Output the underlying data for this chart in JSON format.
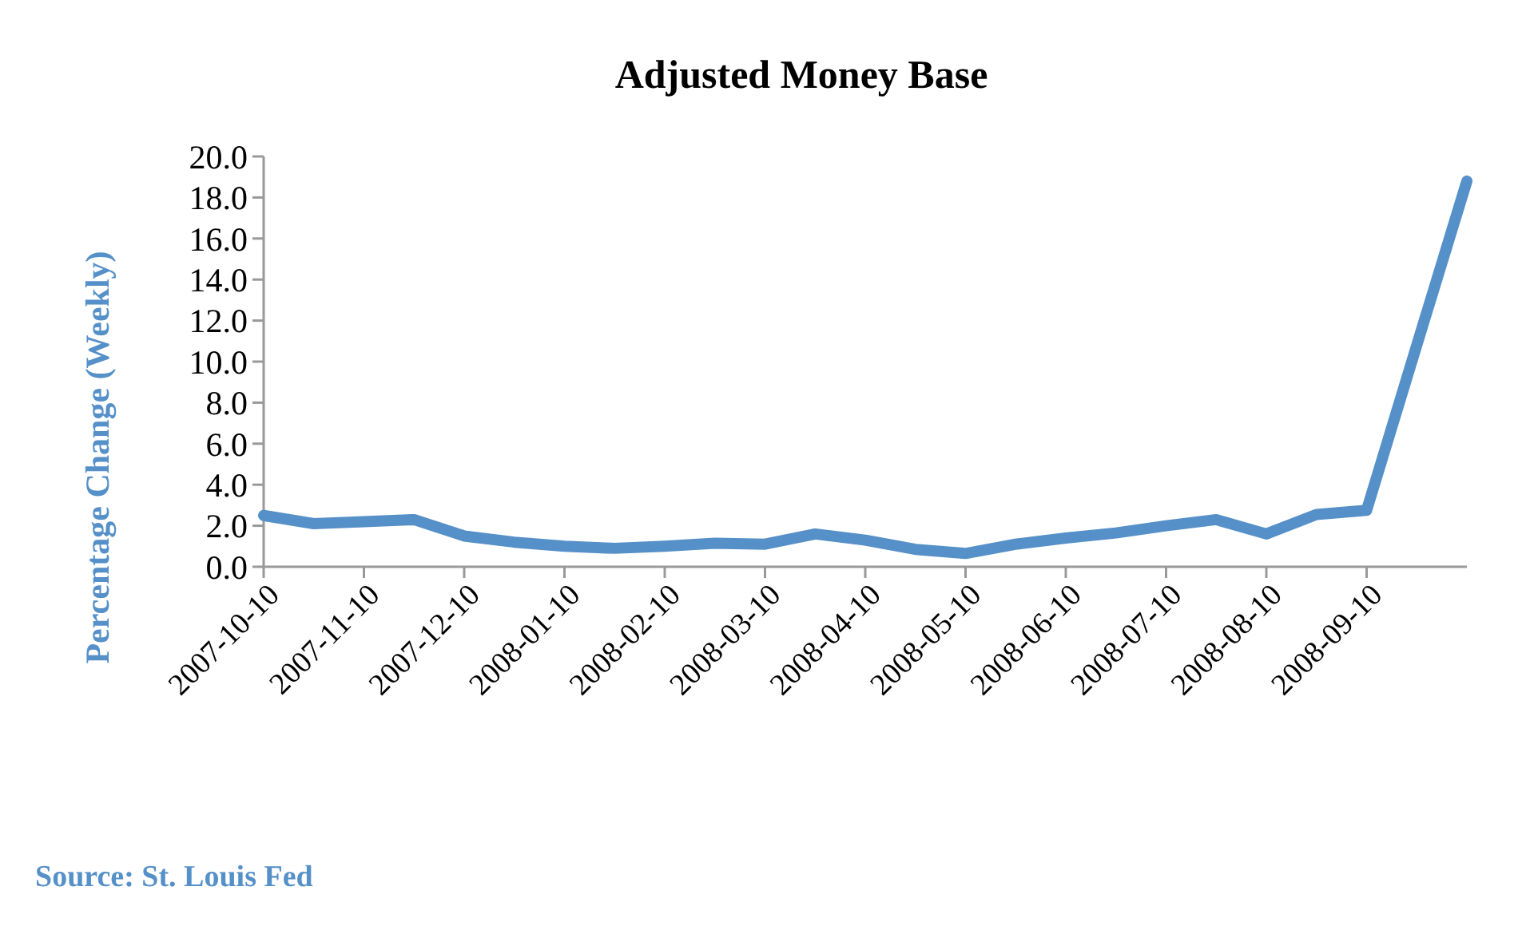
{
  "chart_data": {
    "type": "line",
    "title": "Adjusted Money Base",
    "ylabel": "Percentage Change (Weekly)",
    "categories": [
      "2007-10-10",
      null,
      "2007-11-10",
      null,
      "2007-12-10",
      null,
      "2008-01-10",
      null,
      "2008-02-10",
      null,
      "2008-03-10",
      null,
      "2008-04-10",
      null,
      "2008-05-10",
      null,
      "2008-06-10",
      null,
      "2008-07-10",
      null,
      "2008-08-10",
      null,
      "2008-09-10",
      null,
      null
    ],
    "series": [
      {
        "color": "#5590c8",
        "values": [
          2.5,
          2.1,
          2.2,
          2.3,
          1.5,
          1.2,
          1.0,
          0.9,
          1.0,
          1.15,
          1.1,
          1.6,
          1.3,
          0.85,
          0.65,
          1.1,
          1.4,
          1.65,
          2.0,
          2.3,
          1.6,
          2.55,
          2.75,
          10.8,
          18.8
        ]
      }
    ],
    "ylim": [
      0,
      20
    ],
    "yticks": [
      {
        "value": 0,
        "label": "0.0"
      },
      {
        "value": 2,
        "label": "2.0"
      },
      {
        "value": 4,
        "label": "4.0"
      },
      {
        "value": 6,
        "label": "6.0"
      },
      {
        "value": 8,
        "label": "8.0"
      },
      {
        "value": 10,
        "label": "10.0"
      },
      {
        "value": 12,
        "label": "12.0"
      },
      {
        "value": 14,
        "label": "14.0"
      },
      {
        "value": 16,
        "label": "16.0"
      },
      {
        "value": 18,
        "label": "18.0"
      },
      {
        "value": 20,
        "label": "20.0"
      }
    ],
    "grid": false,
    "marker": "none",
    "line_style": "solid",
    "annotations": [
      "Source: St. Louis Fed"
    ]
  }
}
